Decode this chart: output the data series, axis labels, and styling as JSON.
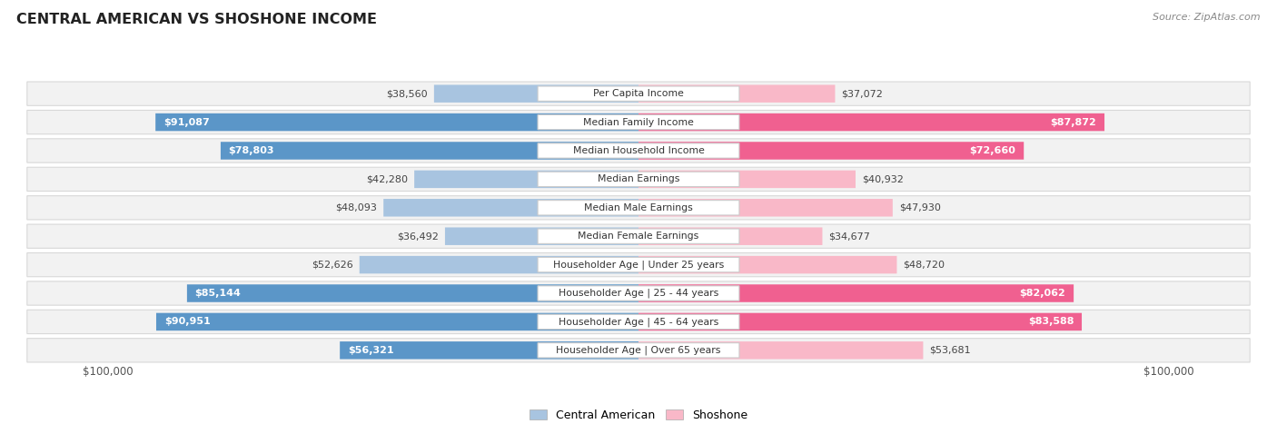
{
  "title": "CENTRAL AMERICAN VS SHOSHONE INCOME",
  "source": "Source: ZipAtlas.com",
  "categories": [
    "Per Capita Income",
    "Median Family Income",
    "Median Household Income",
    "Median Earnings",
    "Median Male Earnings",
    "Median Female Earnings",
    "Householder Age | Under 25 years",
    "Householder Age | 25 - 44 years",
    "Householder Age | 45 - 64 years",
    "Householder Age | Over 65 years"
  ],
  "central_american": [
    38560,
    91087,
    78803,
    42280,
    48093,
    36492,
    52626,
    85144,
    90951,
    56321
  ],
  "shoshone": [
    37072,
    87872,
    72660,
    40932,
    47930,
    34677,
    48720,
    82062,
    83588,
    53681
  ],
  "max_value": 100000,
  "blue_light": "#a8c4e0",
  "blue_dark": "#5b96c8",
  "pink_light": "#f9b8c8",
  "pink_dark": "#f06090",
  "label_blue": "Central American",
  "label_pink": "Shoshone",
  "inside_threshold": 55000,
  "row_bg_color": "#f2f2f2",
  "row_border_color": "#d8d8d8",
  "axis_label_color": "#555555"
}
